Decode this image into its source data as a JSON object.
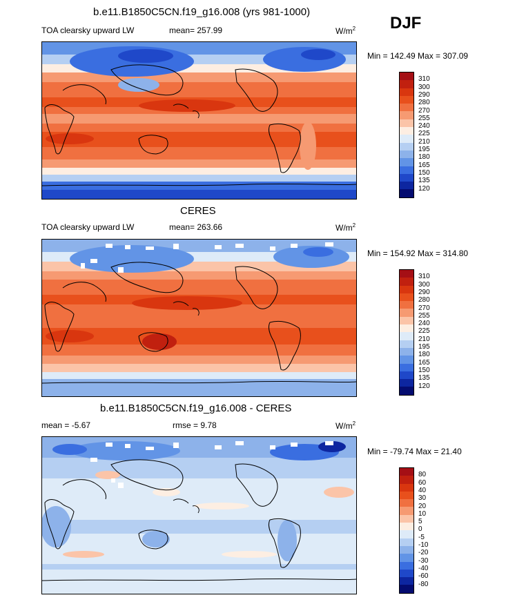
{
  "season": "DJF",
  "unit_base": "W/m",
  "unit_exp": "2",
  "panels": [
    {
      "title": "b.e11.B1850C5CN.f19_g16.008 (yrs 981-1000)",
      "variable": "TOA clearsky upward LW",
      "stat_left": "",
      "stat_mid": "mean= 257.99",
      "minmax": "Min = 142.49 Max = 307.09",
      "levels": [
        "310",
        "300",
        "290",
        "280",
        "270",
        "255",
        "240",
        "225",
        "210",
        "195",
        "180",
        "165",
        "150",
        "135",
        "120"
      ],
      "colors": [
        "#a50f15",
        "#c1200f",
        "#d9360f",
        "#e8501c",
        "#f07040",
        "#f69a72",
        "#fbc4a8",
        "#fdeee2",
        "#deebf8",
        "#b5cff2",
        "#8db2ea",
        "#6294e6",
        "#3a6ee0",
        "#1f48c9",
        "#0d26a0",
        "#040c70"
      ]
    },
    {
      "title": "CERES",
      "variable": "TOA clearsky upward LW",
      "stat_left": "",
      "stat_mid": "mean= 263.66",
      "minmax": "Min = 154.92 Max = 314.80",
      "levels": [
        "310",
        "300",
        "290",
        "280",
        "270",
        "255",
        "240",
        "225",
        "210",
        "195",
        "180",
        "165",
        "150",
        "135",
        "120"
      ],
      "colors": [
        "#a50f15",
        "#c1200f",
        "#d9360f",
        "#e8501c",
        "#f07040",
        "#f69a72",
        "#fbc4a8",
        "#fdeee2",
        "#deebf8",
        "#b5cff2",
        "#8db2ea",
        "#6294e6",
        "#3a6ee0",
        "#1f48c9",
        "#0d26a0",
        "#040c70"
      ]
    },
    {
      "title": "b.e11.B1850C5CN.f19_g16.008 - CERES",
      "variable": "",
      "stat_left": "mean =  -5.67",
      "stat_mid": "rmse =    9.78",
      "minmax": "Min = -79.74 Max =  21.40",
      "levels": [
        "80",
        "60",
        "40",
        "30",
        "20",
        "10",
        "5",
        "0",
        "-5",
        "-10",
        "-20",
        "-30",
        "-40",
        "-60",
        "-80"
      ],
      "colors": [
        "#a50f15",
        "#c1200f",
        "#d9360f",
        "#e8501c",
        "#f07040",
        "#f69a72",
        "#fbc4a8",
        "#fdeee2",
        "#deebf8",
        "#b5cff2",
        "#8db2ea",
        "#6294e6",
        "#3a6ee0",
        "#1f48c9",
        "#0d26a0",
        "#040c70"
      ]
    }
  ]
}
